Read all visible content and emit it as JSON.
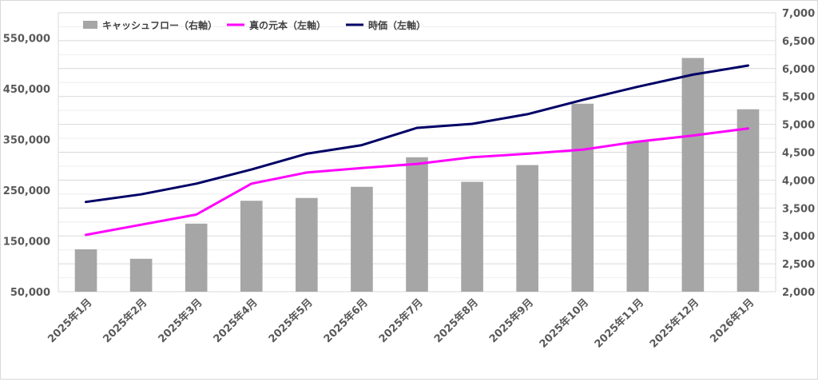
{
  "chart_data": {
    "type": "bar",
    "categories": [
      "2025年1月",
      "2025年2月",
      "2025年3月",
      "2025年4月",
      "2025年5月",
      "2025年6月",
      "2025年7月",
      "2025年8月",
      "2025年9月",
      "2025年10月",
      "2025年11月",
      "2025年12月",
      "2026年1月"
    ],
    "series": [
      {
        "name": "キャッシュフロー（右軸）",
        "type": "bar",
        "axis": "right",
        "color": "#a6a6a6",
        "values": [
          2760,
          2590,
          3220,
          3630,
          3680,
          3880,
          4410,
          3970,
          4270,
          5370,
          4690,
          6190,
          5270
        ]
      },
      {
        "name": "真の元本（左軸）",
        "type": "line",
        "axis": "left",
        "color": "#ff00ff",
        "values": [
          162000,
          182000,
          202000,
          263000,
          285000,
          294000,
          302000,
          315000,
          322000,
          330000,
          346000,
          358000,
          372000
        ]
      },
      {
        "name": "時価（左軸）",
        "type": "line",
        "axis": "left",
        "color": "#000066",
        "values": [
          227000,
          242000,
          263000,
          291000,
          322000,
          339000,
          373000,
          381000,
          400000,
          428000,
          454000,
          478000,
          496000
        ]
      }
    ],
    "y_left": {
      "ylim": [
        50000,
        600000
      ],
      "ticks": [
        "50,000",
        "150,000",
        "250,000",
        "350,000",
        "450,000",
        "550,000"
      ],
      "tick_values": [
        50000,
        150000,
        250000,
        350000,
        450000,
        550000
      ]
    },
    "y_right": {
      "ylim": [
        2000,
        7000
      ],
      "ticks": [
        "2,000",
        "2,500",
        "3,000",
        "3,500",
        "4,000",
        "4,500",
        "5,000",
        "5,500",
        "6,000",
        "6,500",
        "7,000"
      ],
      "tick_values": [
        2000,
        2500,
        3000,
        3500,
        4000,
        4500,
        5000,
        5500,
        6000,
        6500,
        7000
      ]
    },
    "legend_position": "top-left",
    "grid": true
  }
}
